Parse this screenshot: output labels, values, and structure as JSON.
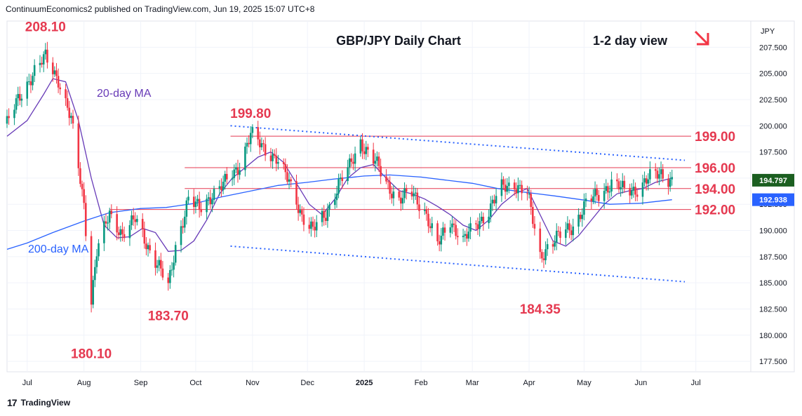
{
  "header": {
    "publisher_line": "ContinuumEconomics2 published on TradingView.com, Jun 19, 2025 15:07 UTC+8"
  },
  "footer": {
    "brand": "TradingView",
    "logo_icon": "tradingview-logo-icon"
  },
  "chart_data": {
    "type": "candlestick",
    "title": "GBP/JPY Daily Chart",
    "subtitle": "1-2 day view",
    "view_direction_icon": "down-right-arrow-icon",
    "currency_label": "JPY",
    "ylim": [
      176.5,
      210.0
    ],
    "y_ticks": [
      "207.500",
      "205.000",
      "202.500",
      "200.000",
      "197.500",
      "195.000",
      "192.500",
      "190.000",
      "187.500",
      "185.000",
      "182.500",
      "180.000",
      "177.500"
    ],
    "y_tick_values": [
      207.5,
      205,
      202.5,
      200,
      197.5,
      195,
      192.5,
      190,
      187.5,
      185,
      182.5,
      180,
      177.5
    ],
    "x_ticks": [
      "Jul",
      "Aug",
      "Sep",
      "Oct",
      "Nov",
      "Dec",
      "2025",
      "Feb",
      "Mar",
      "Apr",
      "May",
      "Jun",
      "Jul"
    ],
    "x_tick_dates": [
      "2024-07-01",
      "2024-08-01",
      "2024-09-01",
      "2024-10-01",
      "2024-11-01",
      "2024-12-01",
      "2025-01-01",
      "2025-02-01",
      "2025-03-01",
      "2025-04-01",
      "2025-05-01",
      "2025-06-01",
      "2025-07-01"
    ],
    "x_range": [
      "2024-06-20",
      "2025-07-31"
    ],
    "price_labels": [
      {
        "value": 194.797,
        "text": "194.797",
        "color": "#1b5e20",
        "role": "last price"
      },
      {
        "value": 192.938,
        "text": "192.938",
        "color": "#2962ff",
        "role": "200-day MA"
      }
    ],
    "horizontal_levels": [
      {
        "value": 199.0,
        "label": "199.00",
        "start": "2024-10-20"
      },
      {
        "value": 196.0,
        "label": "196.00",
        "start": "2024-09-25"
      },
      {
        "value": 194.0,
        "label": "194.00",
        "start": "2024-09-25"
      },
      {
        "value": 192.0,
        "label": "192.00",
        "start": "2024-08-15"
      }
    ],
    "trendlines": [
      {
        "name": "upper channel",
        "points": [
          [
            "2024-10-20",
            200.0
          ],
          [
            "2025-06-25",
            196.7
          ]
        ]
      },
      {
        "name": "lower channel",
        "points": [
          [
            "2024-10-20",
            188.5
          ],
          [
            "2025-06-25",
            185.1
          ]
        ]
      }
    ],
    "annotations": [
      {
        "text": "208.10",
        "date": "2024-07-11",
        "value": 208.1
      },
      {
        "text": "199.80",
        "date": "2024-10-31",
        "value": 199.8
      },
      {
        "text": "183.70",
        "date": "2024-09-16",
        "value": 183.7
      },
      {
        "text": "180.10",
        "date": "2024-08-05",
        "value": 180.1
      },
      {
        "text": "184.35",
        "date": "2025-04-07",
        "value": 184.35
      }
    ],
    "series": [
      {
        "name": "20-day MA",
        "color": "#673ab7",
        "points": [
          [
            "2024-06-20",
            199.0
          ],
          [
            "2024-07-01",
            200.5
          ],
          [
            "2024-07-10",
            203.0
          ],
          [
            "2024-07-15",
            204.5
          ],
          [
            "2024-07-22",
            204.2
          ],
          [
            "2024-07-29",
            200.5
          ],
          [
            "2024-08-05",
            195.0
          ],
          [
            "2024-08-12",
            190.5
          ],
          [
            "2024-08-19",
            189.3
          ],
          [
            "2024-08-26",
            189.4
          ],
          [
            "2024-09-02",
            190.2
          ],
          [
            "2024-09-09",
            189.8
          ],
          [
            "2024-09-16",
            188.0
          ],
          [
            "2024-09-23",
            188.1
          ],
          [
            "2024-09-30",
            189.0
          ],
          [
            "2024-10-07",
            191.0
          ],
          [
            "2024-10-14",
            193.5
          ],
          [
            "2024-10-21",
            195.0
          ],
          [
            "2024-10-28",
            196.0
          ],
          [
            "2024-11-04",
            197.0
          ],
          [
            "2024-11-11",
            197.5
          ],
          [
            "2024-11-18",
            196.5
          ],
          [
            "2024-11-25",
            194.5
          ],
          [
            "2024-12-02",
            192.5
          ],
          [
            "2024-12-09",
            191.5
          ],
          [
            "2024-12-16",
            193.0
          ],
          [
            "2024-12-23",
            195.0
          ],
          [
            "2024-12-30",
            196.0
          ],
          [
            "2025-01-06",
            196.3
          ],
          [
            "2025-01-13",
            195.0
          ],
          [
            "2025-01-20",
            193.8
          ],
          [
            "2025-01-27",
            193.5
          ],
          [
            "2025-02-03",
            193.0
          ],
          [
            "2025-02-10",
            192.3
          ],
          [
            "2025-02-17",
            191.5
          ],
          [
            "2025-02-24",
            190.5
          ],
          [
            "2025-03-03",
            190.0
          ],
          [
            "2025-03-10",
            191.0
          ],
          [
            "2025-03-17",
            192.5
          ],
          [
            "2025-03-24",
            193.5
          ],
          [
            "2025-03-31",
            194.0
          ],
          [
            "2025-04-07",
            191.5
          ],
          [
            "2025-04-14",
            189.0
          ],
          [
            "2025-04-21",
            188.5
          ],
          [
            "2025-04-28",
            189.5
          ],
          [
            "2025-05-05",
            191.0
          ],
          [
            "2025-05-12",
            192.5
          ],
          [
            "2025-05-19",
            193.5
          ],
          [
            "2025-05-26",
            193.8
          ],
          [
            "2025-06-02",
            194.0
          ],
          [
            "2025-06-09",
            194.6
          ],
          [
            "2025-06-18",
            195.0
          ]
        ]
      },
      {
        "name": "200-day MA",
        "color": "#2962ff",
        "points": [
          [
            "2024-06-20",
            188.2
          ],
          [
            "2024-07-01",
            188.8
          ],
          [
            "2024-07-15",
            189.8
          ],
          [
            "2024-08-01",
            190.9
          ],
          [
            "2024-08-15",
            191.7
          ],
          [
            "2024-09-01",
            192.1
          ],
          [
            "2024-09-15",
            192.2
          ],
          [
            "2024-10-01",
            192.6
          ],
          [
            "2024-10-15",
            193.2
          ],
          [
            "2024-11-01",
            193.8
          ],
          [
            "2024-11-15",
            194.3
          ],
          [
            "2024-12-01",
            194.6
          ],
          [
            "2024-12-15",
            194.9
          ],
          [
            "2025-01-01",
            195.2
          ],
          [
            "2025-01-15",
            195.3
          ],
          [
            "2025-02-01",
            195.1
          ],
          [
            "2025-02-15",
            194.8
          ],
          [
            "2025-03-01",
            194.5
          ],
          [
            "2025-03-15",
            194.0
          ],
          [
            "2025-04-01",
            193.6
          ],
          [
            "2025-04-15",
            193.3
          ],
          [
            "2025-05-01",
            192.9
          ],
          [
            "2025-05-15",
            192.5
          ],
          [
            "2025-06-01",
            192.6
          ],
          [
            "2025-06-18",
            192.938
          ]
        ]
      },
      {
        "name": "GBP/JPY close",
        "points": [
          [
            "2024-06-20",
            200.2
          ],
          [
            "2024-06-27",
            202.8
          ],
          [
            "2024-07-04",
            205.0
          ],
          [
            "2024-07-11",
            206.5
          ],
          [
            "2024-07-18",
            204.5
          ],
          [
            "2024-07-25",
            200.5
          ],
          [
            "2024-08-01",
            192.5
          ],
          [
            "2024-08-05",
            183.5
          ],
          [
            "2024-08-08",
            188.0
          ],
          [
            "2024-08-15",
            191.5
          ],
          [
            "2024-08-22",
            189.7
          ],
          [
            "2024-08-29",
            191.0
          ],
          [
            "2024-09-05",
            188.5
          ],
          [
            "2024-09-11",
            186.5
          ],
          [
            "2024-09-16",
            184.5
          ],
          [
            "2024-09-20",
            188.5
          ],
          [
            "2024-09-27",
            193.0
          ],
          [
            "2024-10-03",
            192.0
          ],
          [
            "2024-10-10",
            193.5
          ],
          [
            "2024-10-17",
            194.5
          ],
          [
            "2024-10-24",
            196.0
          ],
          [
            "2024-10-31",
            199.2
          ],
          [
            "2024-11-07",
            197.8
          ],
          [
            "2024-11-14",
            197.0
          ],
          [
            "2024-11-21",
            194.5
          ],
          [
            "2024-11-28",
            191.5
          ],
          [
            "2024-12-04",
            190.0
          ],
          [
            "2024-12-11",
            191.5
          ],
          [
            "2024-12-18",
            194.5
          ],
          [
            "2024-12-24",
            196.0
          ],
          [
            "2024-12-30",
            198.5
          ],
          [
            "2025-01-07",
            196.5
          ],
          [
            "2025-01-13",
            194.5
          ],
          [
            "2025-01-20",
            193.0
          ],
          [
            "2025-01-27",
            193.5
          ],
          [
            "2025-02-03",
            192.0
          ],
          [
            "2025-02-10",
            188.5
          ],
          [
            "2025-02-17",
            191.0
          ],
          [
            "2025-02-24",
            189.0
          ],
          [
            "2025-03-03",
            190.5
          ],
          [
            "2025-03-10",
            192.0
          ],
          [
            "2025-03-17",
            194.0
          ],
          [
            "2025-03-24",
            194.5
          ],
          [
            "2025-03-31",
            193.5
          ],
          [
            "2025-04-07",
            187.5
          ],
          [
            "2025-04-11",
            188.5
          ],
          [
            "2025-04-18",
            189.5
          ],
          [
            "2025-04-25",
            190.5
          ],
          [
            "2025-05-02",
            192.5
          ],
          [
            "2025-05-09",
            193.5
          ],
          [
            "2025-05-16",
            194.5
          ],
          [
            "2025-05-23",
            193.8
          ],
          [
            "2025-05-30",
            194.0
          ],
          [
            "2025-06-06",
            195.0
          ],
          [
            "2025-06-12",
            195.5
          ],
          [
            "2025-06-18",
            194.797
          ]
        ]
      }
    ],
    "ma_labels": [
      {
        "text": "20-day MA",
        "color": "#673ab7"
      },
      {
        "text": "200-day MA",
        "color": "#2962ff"
      }
    ],
    "colors": {
      "up": "#089981",
      "down": "#f23645",
      "level": "#e53950",
      "trendline": "#2962ff",
      "label": "#e53950"
    }
  }
}
